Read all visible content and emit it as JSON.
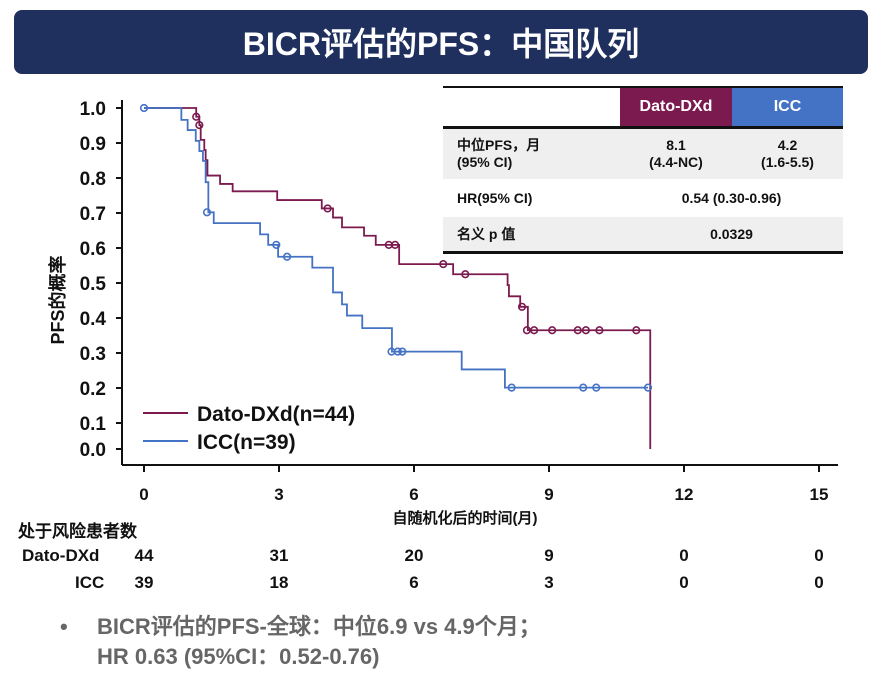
{
  "title": "BICR评估的PFS：中国队列",
  "colors": {
    "title_bg": "#1f2f5e",
    "dato": "#7b1a4e",
    "icc": "#4472c4"
  },
  "table": {
    "headers": [
      "Dato-DXd",
      "ICC"
    ],
    "rows": [
      {
        "label_line1": "中位PFS，月",
        "label_line2": "(95% CI)",
        "dato_line1": "8.1",
        "dato_line2": "(4.4-NC)",
        "icc_line1": "4.2",
        "icc_line2": "(1.6-5.5)"
      },
      {
        "label": "HR(95% CI)",
        "value": "0.54 (0.30-0.96)"
      },
      {
        "label": "名义 p 值",
        "value": "0.0329"
      }
    ]
  },
  "risk_table": {
    "title": "处于风险患者数",
    "rows": [
      {
        "label": "Dato-DXd",
        "values": [
          "44",
          "31",
          "20",
          "9",
          "0",
          "0"
        ]
      },
      {
        "label": "ICC",
        "values": [
          "39",
          "18",
          "6",
          "3",
          "0",
          "0"
        ]
      }
    ]
  },
  "bullet": {
    "symbol": "•",
    "line1": "BICR评估的PFS-全球：中位6.9 vs 4.9个月；",
    "line2": "HR 0.63 (95%CI：0.52-0.76)"
  },
  "chart_data": {
    "type": "line",
    "subtype": "kaplan-meier",
    "xlabel": "自随机化后的时间(月)",
    "ylabel": "PFS的概率",
    "xlim": [
      0,
      15
    ],
    "ylim": [
      0,
      1
    ],
    "xticks": [
      "0",
      "3",
      "6",
      "9",
      "12",
      "15"
    ],
    "yticks": [
      "1.0",
      "0.9",
      "0.8",
      "0.7",
      "0.6",
      "0.5",
      "0.4",
      "0.3",
      "0.2",
      "0.1",
      "0.0"
    ],
    "legend_position": "bottom-left",
    "series": [
      {
        "name": "Dato-DXd(n=44)",
        "color": "#7b1a4e",
        "steps": [
          [
            0,
            1.0
          ],
          [
            1.16,
            0.975
          ],
          [
            1.23,
            0.951
          ],
          [
            1.26,
            0.909
          ],
          [
            1.34,
            0.88
          ],
          [
            1.37,
            0.851
          ],
          [
            1.41,
            0.807
          ],
          [
            1.69,
            0.783
          ],
          [
            1.97,
            0.762
          ],
          [
            2.96,
            0.737
          ],
          [
            3.95,
            0.713
          ],
          [
            4.2,
            0.687
          ],
          [
            4.4,
            0.659
          ],
          [
            4.89,
            0.635
          ],
          [
            5.15,
            0.609
          ],
          [
            5.67,
            0.554
          ],
          [
            6.87,
            0.525
          ],
          [
            8.08,
            0.494
          ],
          [
            8.11,
            0.462
          ],
          [
            8.36,
            0.432
          ],
          [
            8.53,
            0.365
          ],
          [
            11.25,
            0.0
          ]
        ],
        "end": 11.25,
        "censored": [
          [
            1.16,
            0.975
          ],
          [
            1.23,
            0.951
          ],
          [
            4.08,
            0.713
          ],
          [
            5.44,
            0.609
          ],
          [
            5.58,
            0.609
          ],
          [
            6.65,
            0.554
          ],
          [
            7.14,
            0.525
          ],
          [
            8.4,
            0.432
          ],
          [
            8.51,
            0.365
          ],
          [
            8.67,
            0.365
          ],
          [
            9.07,
            0.365
          ],
          [
            9.64,
            0.365
          ],
          [
            9.82,
            0.365
          ],
          [
            10.12,
            0.365
          ],
          [
            10.94,
            0.365
          ]
        ]
      },
      {
        "name": "ICC(n=39)",
        "color": "#4472c4",
        "steps": [
          [
            0,
            1.0
          ],
          [
            0.83,
            0.966
          ],
          [
            0.97,
            0.937
          ],
          [
            1.15,
            0.906
          ],
          [
            1.23,
            0.877
          ],
          [
            1.31,
            0.849
          ],
          [
            1.37,
            0.788
          ],
          [
            1.43,
            0.702
          ],
          [
            1.55,
            0.671
          ],
          [
            2.58,
            0.639
          ],
          [
            2.76,
            0.609
          ],
          [
            2.98,
            0.575
          ],
          [
            3.74,
            0.544
          ],
          [
            4.2,
            0.473
          ],
          [
            4.4,
            0.439
          ],
          [
            4.51,
            0.407
          ],
          [
            4.85,
            0.371
          ],
          [
            5.51,
            0.304
          ],
          [
            7.06,
            0.253
          ],
          [
            8.02,
            0.201
          ]
        ],
        "end": 11.2,
        "censored": [
          [
            0,
            1.0
          ],
          [
            1.4,
            0.702
          ],
          [
            2.94,
            0.609
          ],
          [
            3.18,
            0.575
          ],
          [
            5.5,
            0.304
          ],
          [
            5.64,
            0.304
          ],
          [
            5.74,
            0.304
          ],
          [
            8.17,
            0.201
          ],
          [
            9.76,
            0.201
          ],
          [
            10.05,
            0.201
          ],
          [
            11.2,
            0.201
          ]
        ]
      }
    ]
  }
}
